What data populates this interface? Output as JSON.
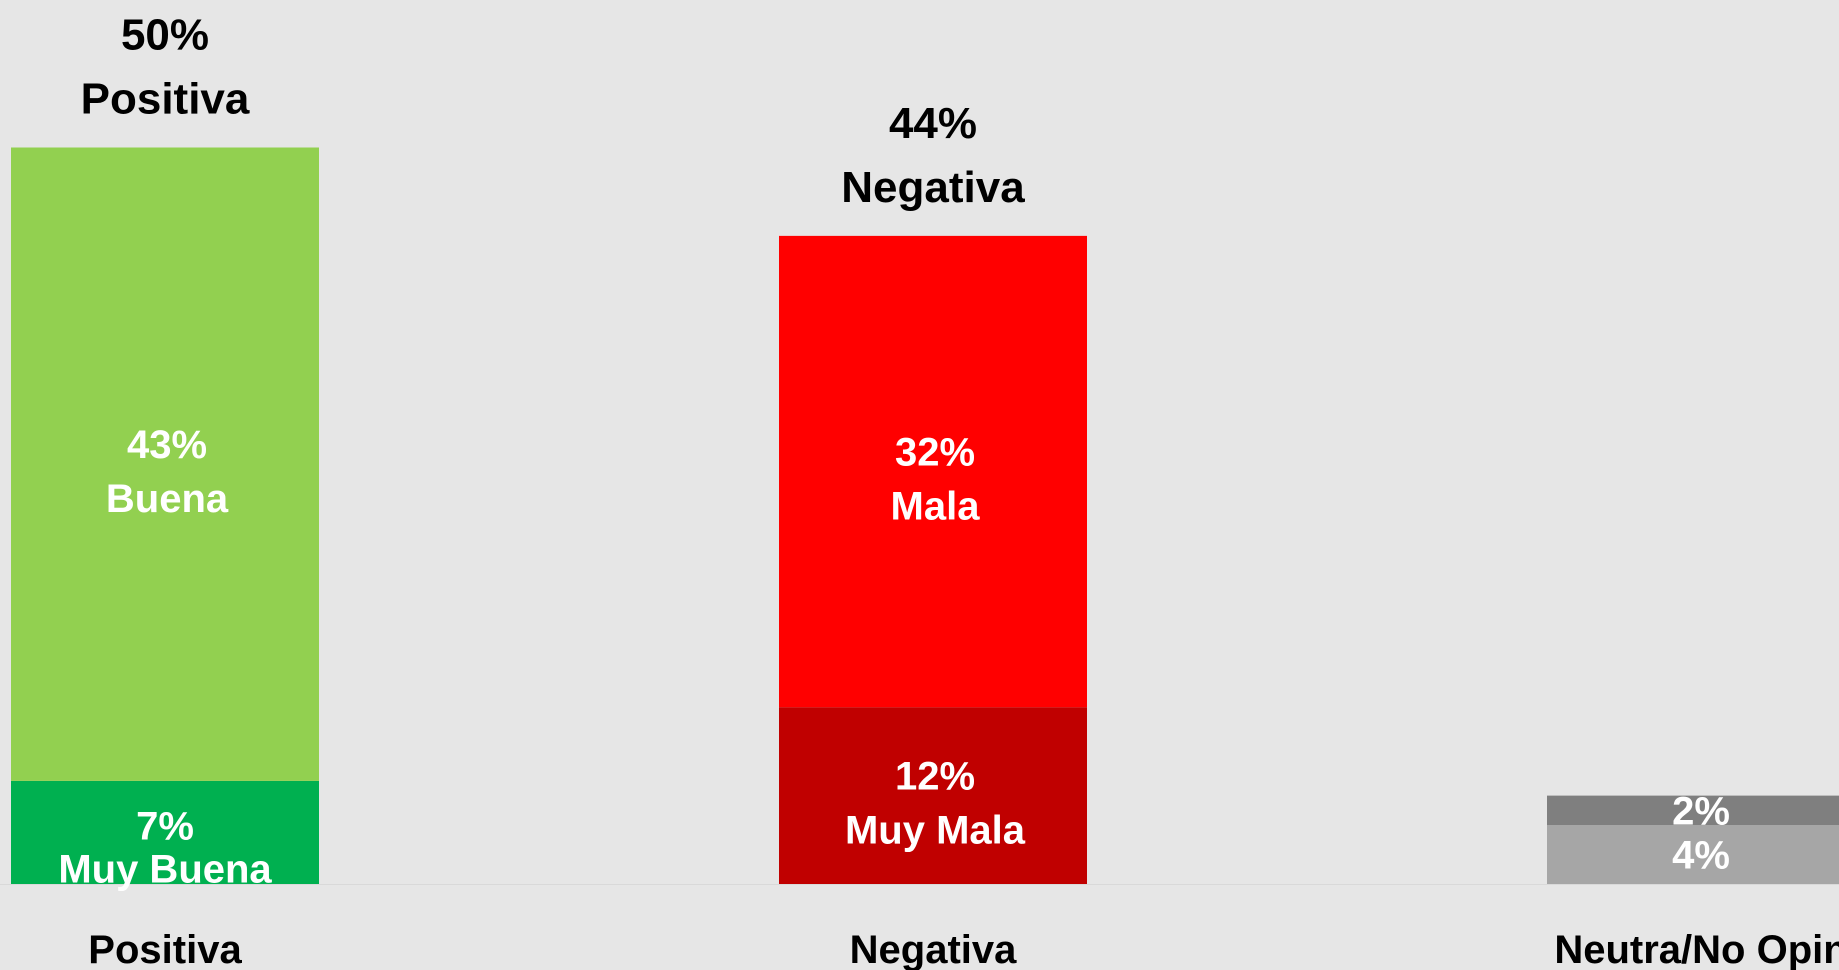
{
  "chart_data": {
    "type": "bar",
    "stacked": true,
    "ylim": [
      0,
      56
    ],
    "grid": false,
    "categories": [
      "Positiva",
      "Negativa",
      "Neutra/No Opin"
    ],
    "totals": [
      {
        "value": "50%",
        "label": "Positiva"
      },
      {
        "value": "44%",
        "label": "Negativa"
      },
      null
    ],
    "segments": [
      [
        {
          "value": 7,
          "value_label": "7%",
          "name": "Muy Buena",
          "color": "#00b050"
        },
        {
          "value": 43,
          "value_label": "43%",
          "name": "Buena",
          "color": "#92d050"
        }
      ],
      [
        {
          "value": 12,
          "value_label": "12%",
          "name": "Muy Mala",
          "color": "#c00000"
        },
        {
          "value": 32,
          "value_label": "32%",
          "name": "Mala",
          "color": "#ff0000"
        }
      ],
      [
        {
          "value": 4,
          "value_label": "4%",
          "name": "",
          "color": "#a6a6a6"
        },
        {
          "value": 2,
          "value_label": "2%",
          "name": "",
          "color": "#7f7f7f"
        }
      ]
    ]
  }
}
